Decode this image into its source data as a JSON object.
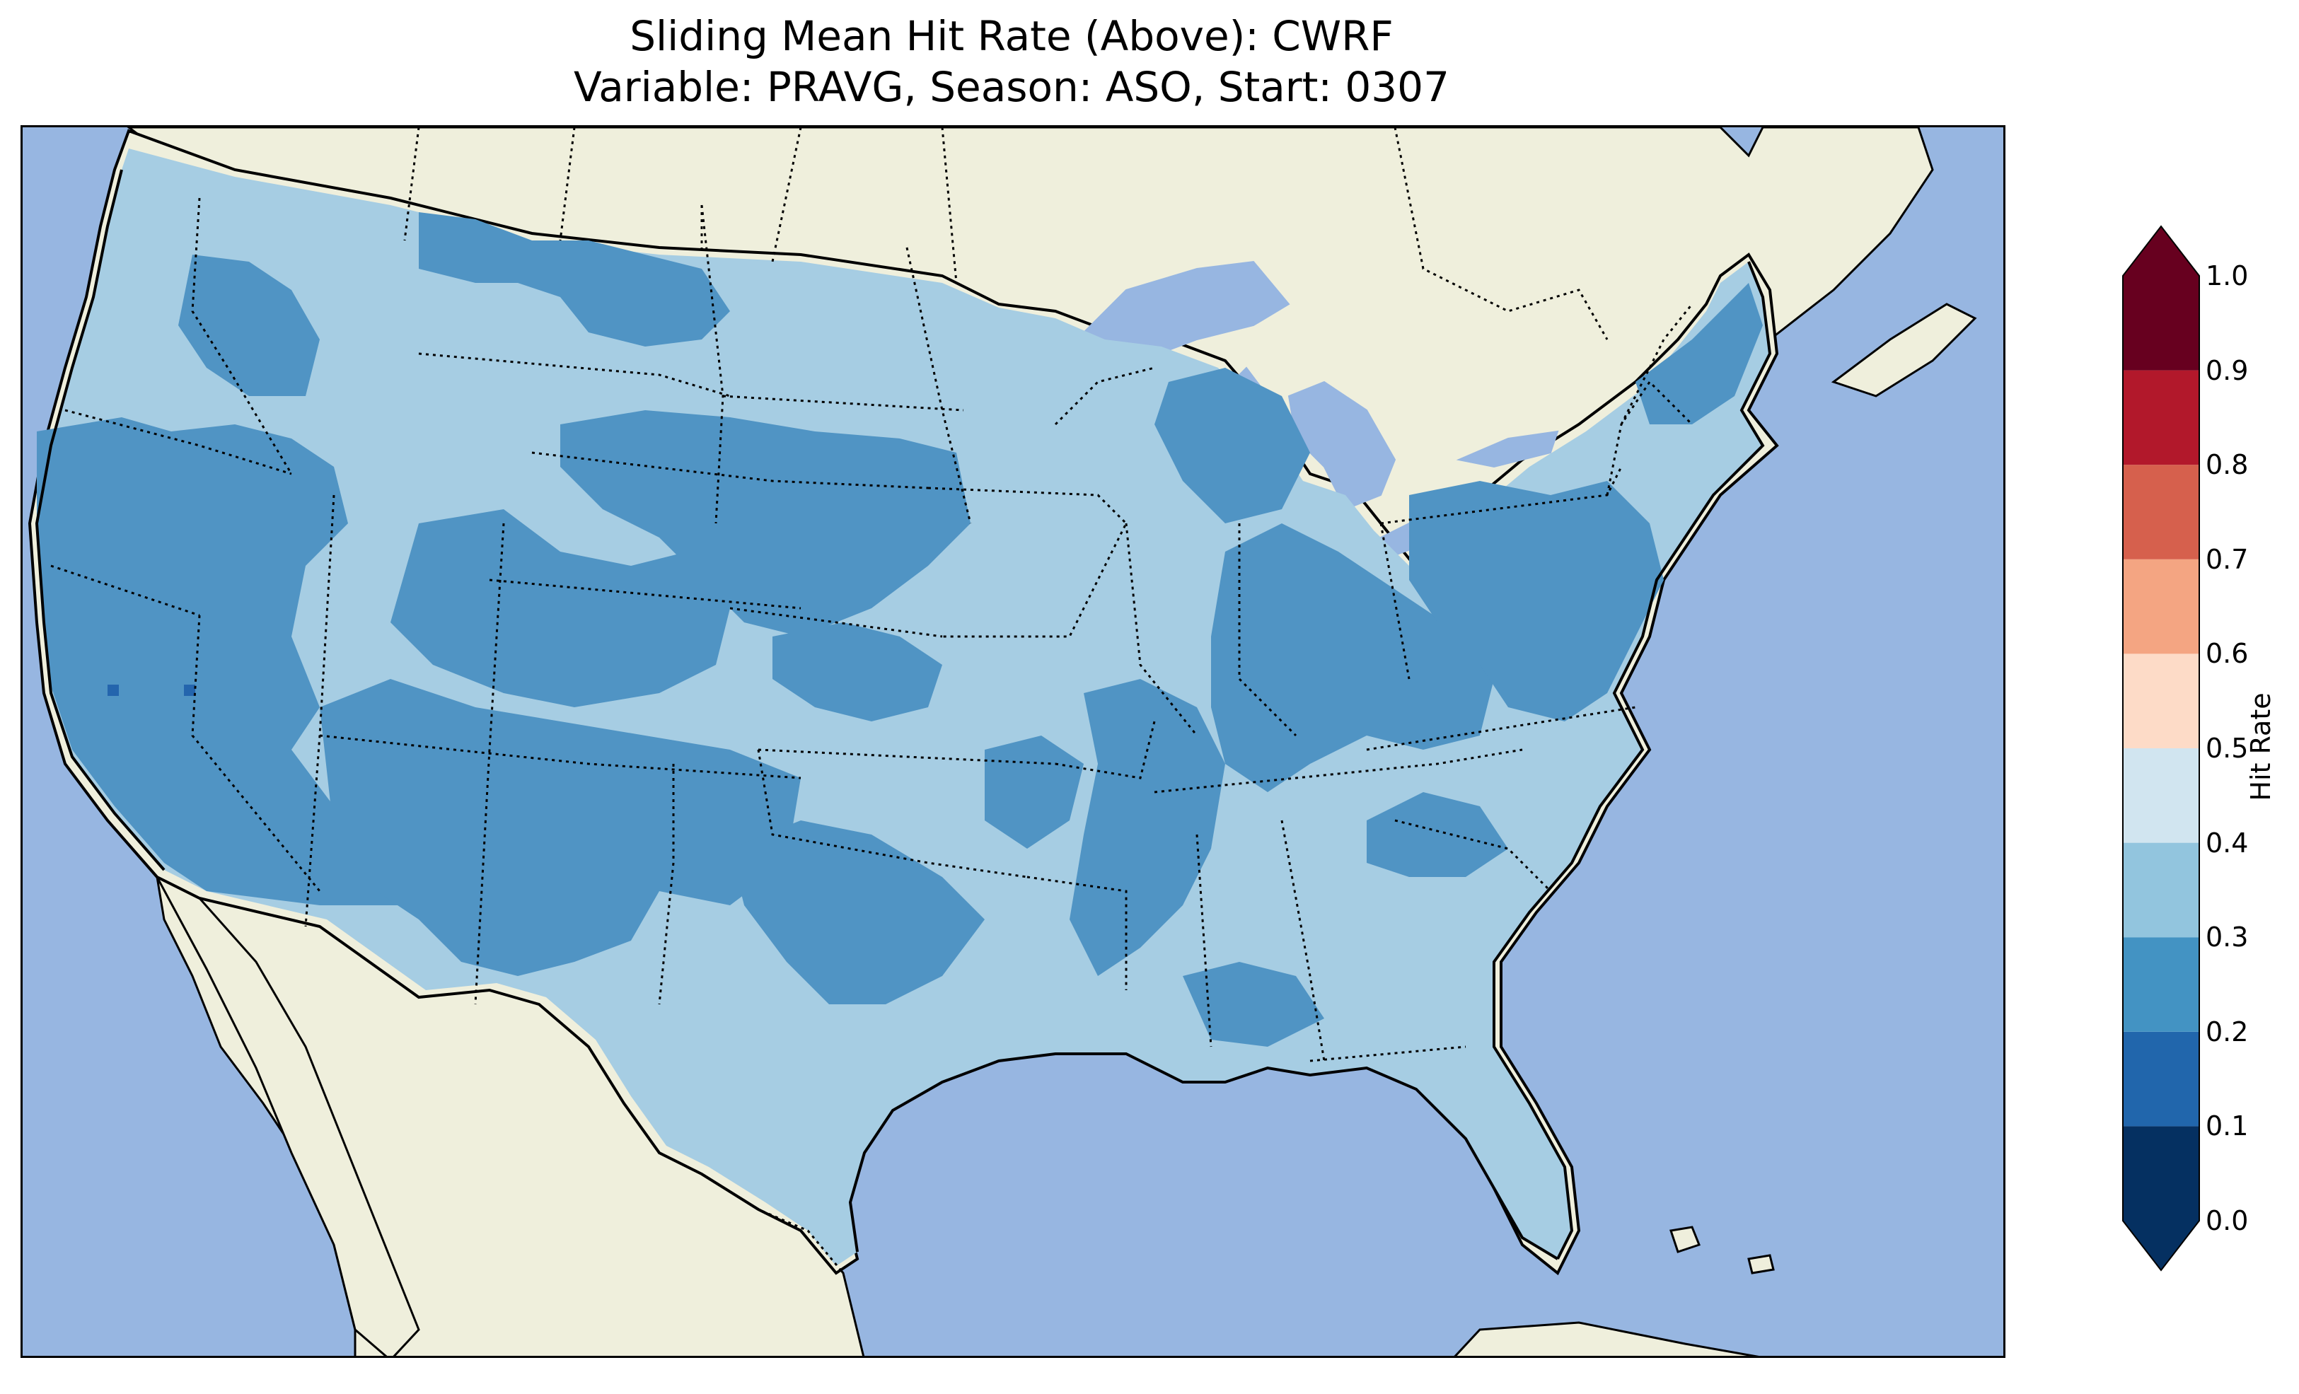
{
  "title": {
    "line1": "Sliding Mean Hit Rate (Above): CWRF",
    "line2": "Variable: PRAVG, Season: ASO, Start: 0307"
  },
  "map": {
    "projection": "Lambert conformal",
    "extent": "Continental United States",
    "layers": [
      "ocean",
      "land",
      "lakes",
      "coastlines",
      "state-borders",
      "country-borders"
    ],
    "colors": {
      "ocean": "#97b6e1",
      "land": "#efefdc",
      "lakes": "#97b6e1",
      "coast": "#000000"
    },
    "field_levels": [
      {
        "range": "0.2-0.3",
        "color": "#5094c4"
      },
      {
        "range": "0.3-0.4",
        "color": "#a6cde3"
      },
      {
        "range": "0.1-0.2",
        "color": "#2465ad"
      }
    ]
  },
  "colorbar": {
    "label": "Hit Rate",
    "ticks": [
      "0.0",
      "0.1",
      "0.2",
      "0.3",
      "0.4",
      "0.5",
      "0.6",
      "0.7",
      "0.8",
      "0.9",
      "1.0"
    ],
    "bins": [
      {
        "from": 0.0,
        "to": 0.1,
        "color": "#053061"
      },
      {
        "from": 0.1,
        "to": 0.2,
        "color": "#2166ac"
      },
      {
        "from": 0.2,
        "to": 0.3,
        "color": "#4393c3"
      },
      {
        "from": 0.3,
        "to": 0.4,
        "color": "#92c5de"
      },
      {
        "from": 0.4,
        "to": 0.5,
        "color": "#d1e5f0"
      },
      {
        "from": 0.5,
        "to": 0.6,
        "color": "#fddbc7"
      },
      {
        "from": 0.6,
        "to": 0.7,
        "color": "#f4a582"
      },
      {
        "from": 0.7,
        "to": 0.8,
        "color": "#d6604d"
      },
      {
        "from": 0.8,
        "to": 0.9,
        "color": "#b2182b"
      },
      {
        "from": 0.9,
        "to": 1.0,
        "color": "#67001f"
      }
    ],
    "extend": "both",
    "under_color": "#053061",
    "over_color": "#67001f"
  }
}
